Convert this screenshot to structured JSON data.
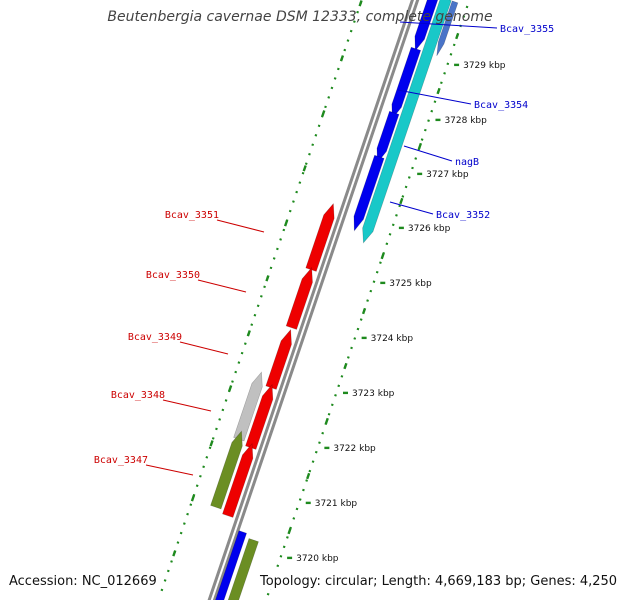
{
  "title": "Beutenbergia cavernae DSM 12333, complete genome",
  "footer": {
    "accession": "Accession: NC_012669",
    "topology": "Topology: circular; Length: 4,669,183 bp; Genes: 4,250"
  },
  "colors": {
    "backbone": "#8a8a8a",
    "tick": "#1e8a1e",
    "forward_label": "#0000cc",
    "reverse_label": "#cc0000",
    "gene_blue": "#0000ee",
    "gene_red": "#ee0000",
    "gene_cyan": "#19c8c8",
    "gene_gray": "#c0c0c0",
    "gene_olive": "#6b8e23",
    "gene_steel": "#4a74c8"
  },
  "tick_labels": [
    "3729 kbp",
    "3728 kbp",
    "3727 kbp",
    "3726 kbp",
    "3725 kbp",
    "3724 kbp",
    "3723 kbp",
    "3722 kbp",
    "3721 kbp",
    "3720 kbp"
  ],
  "forward_labels": [
    "Bcav_3355",
    "Bcav_3354",
    "nagB",
    "Bcav_3352"
  ],
  "reverse_labels": [
    "Bcav_3351",
    "Bcav_3350",
    "Bcav_3349",
    "Bcav_3348",
    "Bcav_3347"
  ]
}
